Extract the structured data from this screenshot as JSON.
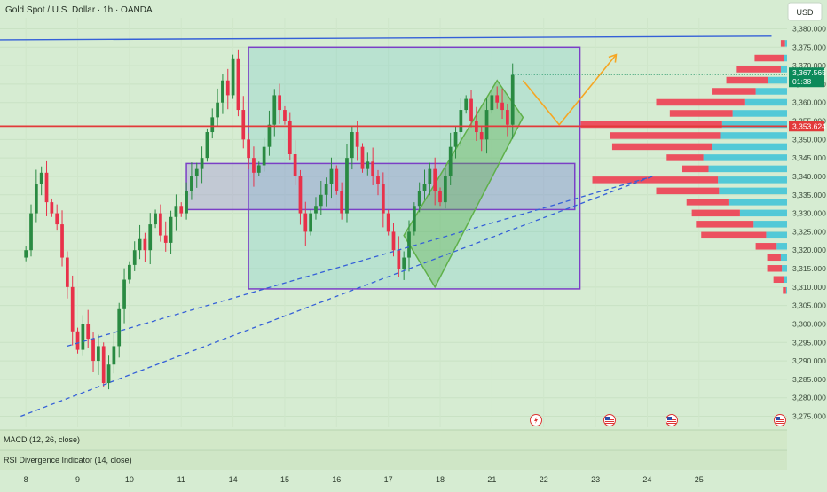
{
  "header": {
    "symbol_title": "Gold Spot / U.S. Dollar · 1h · OANDA"
  },
  "currency_button": "USD",
  "price_axis": {
    "ticks": [
      "3,380.000",
      "3,375.000",
      "3,370.000",
      "3,365.000",
      "3,360.000",
      "3,355.000",
      "3,350.000",
      "3,345.000",
      "3,340.000",
      "3,335.000",
      "3,330.000",
      "3,325.000",
      "3,320.000",
      "3,315.000",
      "3,310.000",
      "3,305.000",
      "3,300.000",
      "3,295.000",
      "3,290.000",
      "3,285.000",
      "3,280.000",
      "3,275.000"
    ],
    "tick_values": [
      3380,
      3375,
      3370,
      3365,
      3360,
      3355,
      3350,
      3345,
      3340,
      3335,
      3330,
      3325,
      3320,
      3315,
      3310,
      3305,
      3300,
      3295,
      3290,
      3285,
      3280,
      3275
    ],
    "current_price_label": "3,367.565",
    "current_price": 3367.565,
    "countdown_label": "01:38",
    "level_price_label": "3,353.624",
    "level_price": 3353.624
  },
  "time_axis": {
    "labels": [
      "8",
      "9",
      "10",
      "11",
      "14",
      "15",
      "16",
      "17",
      "18",
      "21",
      "22",
      "23",
      "24",
      "25"
    ],
    "bar_index": [
      0,
      10,
      20,
      30,
      40,
      50,
      60,
      70,
      80,
      90,
      100,
      110,
      120,
      130
    ]
  },
  "indicators": {
    "macd_label": "MACD (12, 26, close)",
    "rsi_label": "RSI Divergence Indicator (14, close)"
  },
  "colors": {
    "background": "#d6ecd2",
    "up_candle": "#2a8a42",
    "down_candle": "#e8314a",
    "trendline_blue": "#3560d8",
    "resistance_red": "#e23a3a",
    "box_purple": "#7b3fc6",
    "channel_green": "#5fb04a",
    "projection_orange": "#f5a623",
    "volume_red": "#ee3f52",
    "volume_cyan": "#3bc3d8",
    "price_badge": "#0c8a5a",
    "level_badge": "#e23a3a"
  },
  "event_icons": [
    "flash-event-icon",
    "us-flag-event-icon",
    "us-flag-event-icon",
    "us-flag-event-icon"
  ],
  "chart_data": {
    "type": "candlestick",
    "instrument": "Gold Spot / U.S. Dollar",
    "timeframe": "1h",
    "source": "OANDA",
    "currency": "USD",
    "y_range": [
      3272,
      3383
    ],
    "x_bar_range": [
      -5,
      147
    ],
    "last_bar_index": 94,
    "x_ticks": [
      "8",
      "9",
      "10",
      "11",
      "14",
      "15",
      "16",
      "17",
      "18",
      "21",
      "22",
      "23",
      "24",
      "25"
    ],
    "close_path": [
      3320,
      3330,
      3338,
      3341,
      3333,
      3330,
      3327,
      3318,
      3310,
      3298,
      3293,
      3300,
      3296,
      3290,
      3294,
      3284,
      3289,
      3294,
      3304,
      3312,
      3316,
      3320,
      3323,
      3320,
      3327,
      3330,
      3324,
      3322,
      3329,
      3332,
      3330,
      3336,
      3340,
      3342,
      3345,
      3352,
      3356,
      3360,
      3366,
      3362,
      3372,
      3358,
      3350,
      3345,
      3341,
      3343,
      3348,
      3354,
      3362,
      3358,
      3355,
      3346,
      3340,
      3330,
      3325,
      3330,
      3332,
      3335,
      3338,
      3342,
      3336,
      3330,
      3345,
      3352,
      3348,
      3342,
      3344,
      3340,
      3338,
      3330,
      3325,
      3320,
      3315,
      3318,
      3325,
      3332,
      3336,
      3338,
      3342,
      3336,
      3333,
      3340,
      3348,
      3352,
      3358,
      3361,
      3355,
      3352,
      3350,
      3358,
      3362,
      3360,
      3358,
      3354,
      3367.5
    ],
    "lines": [
      {
        "kind": "horizontal_resistance",
        "price": 3353.6
      },
      {
        "kind": "upper_trend_line",
        "from": [
          -5,
          3377
        ],
        "to": [
          144,
          3378
        ]
      },
      {
        "kind": "dashed_uptrend_1",
        "from": [
          8,
          3294
        ],
        "to": [
          121,
          3340
        ]
      },
      {
        "kind": "dashed_uptrend_2",
        "from": [
          -1,
          3275
        ],
        "to": [
          121,
          3340
        ]
      }
    ],
    "boxes": [
      {
        "kind": "range_box",
        "bars": [
          43,
          107
        ],
        "price": [
          3309.5,
          3375
        ]
      },
      {
        "kind": "consolidation_zone",
        "bars": [
          31,
          106
        ],
        "price": [
          3331,
          3343.5
        ]
      }
    ],
    "channel": {
      "corners": [
        [
          73,
          3324
        ],
        [
          91,
          3366
        ],
        [
          96,
          3356
        ],
        [
          79,
          3310
        ]
      ]
    },
    "projection": [
      [
        96,
        3366
      ],
      [
        103,
        3354
      ],
      [
        114,
        3373
      ]
    ],
    "volume_profile": [
      {
        "price": 3376,
        "red": 0.04,
        "cyan": 0.02
      },
      {
        "price": 3372,
        "red": 0.28,
        "cyan": 0.03
      },
      {
        "price": 3369,
        "red": 0.42,
        "cyan": 0.06
      },
      {
        "price": 3366,
        "red": 0.4,
        "cyan": 0.18
      },
      {
        "price": 3363,
        "red": 0.42,
        "cyan": 0.3
      },
      {
        "price": 3360,
        "red": 0.85,
        "cyan": 0.4
      },
      {
        "price": 3357,
        "red": 0.6,
        "cyan": 0.52
      },
      {
        "price": 3354,
        "red": 1.35,
        "cyan": 0.62
      },
      {
        "price": 3351,
        "red": 1.05,
        "cyan": 0.64
      },
      {
        "price": 3348,
        "red": 0.95,
        "cyan": 0.72
      },
      {
        "price": 3345,
        "red": 0.35,
        "cyan": 0.8
      },
      {
        "price": 3342,
        "red": 0.25,
        "cyan": 0.75
      },
      {
        "price": 3339,
        "red": 1.2,
        "cyan": 0.66
      },
      {
        "price": 3336,
        "red": 0.6,
        "cyan": 0.65
      },
      {
        "price": 3333,
        "red": 0.4,
        "cyan": 0.56
      },
      {
        "price": 3330,
        "red": 0.46,
        "cyan": 0.45
      },
      {
        "price": 3327,
        "red": 0.55,
        "cyan": 0.32
      },
      {
        "price": 3324,
        "red": 0.62,
        "cyan": 0.2
      },
      {
        "price": 3321,
        "red": 0.2,
        "cyan": 0.1
      },
      {
        "price": 3318,
        "red": 0.13,
        "cyan": 0.06
      },
      {
        "price": 3315,
        "red": 0.14,
        "cyan": 0.05
      },
      {
        "price": 3312,
        "red": 0.1,
        "cyan": 0.03
      },
      {
        "price": 3309,
        "red": 0.03,
        "cyan": 0.01
      }
    ]
  }
}
